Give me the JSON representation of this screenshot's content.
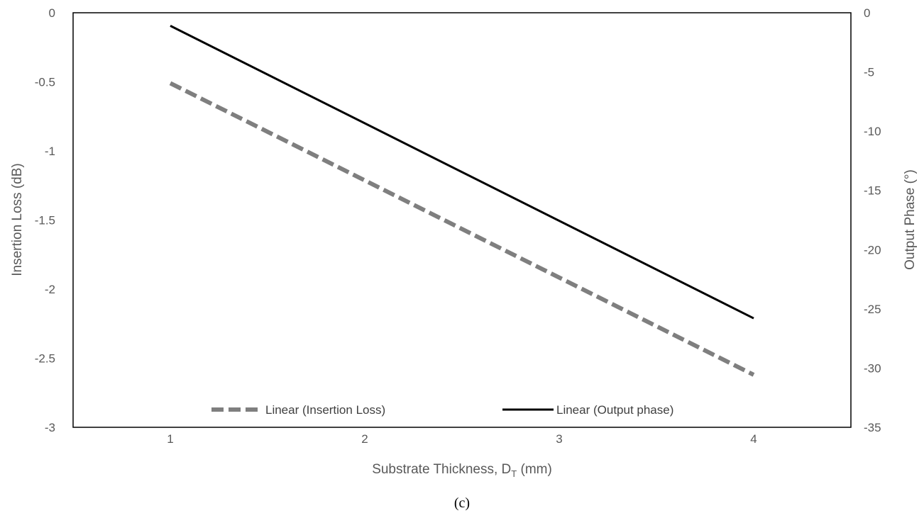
{
  "chart_data": {
    "type": "line",
    "title": "",
    "xlabel": "Substrate Thickness, D",
    "xlabel_subscript": "T",
    "xlabel_suffix": " (mm)",
    "ylabel_left": "Insertion Loss (dB)",
    "ylabel_right": "Output Phase (°)",
    "xlim": [
      0.5,
      4.5
    ],
    "ylim_left": [
      -3,
      0
    ],
    "ylim_right": [
      -35,
      0
    ],
    "x_ticks": [
      "1",
      "2",
      "3",
      "4"
    ],
    "y_left_ticks": [
      "0",
      "-0.5",
      "-1",
      "-1.5",
      "-2",
      "-2.5",
      "-3"
    ],
    "y_right_ticks": [
      "0",
      "-5",
      "-10",
      "-15",
      "-20",
      "-25",
      "-30",
      "-35"
    ],
    "grid": false,
    "legend_position": "bottom-inside",
    "series": [
      {
        "name": "Linear (Insertion Loss)",
        "axis": "left",
        "style": "dashed",
        "color": "#7f7f7f",
        "x": [
          1,
          4
        ],
        "y": [
          -0.51,
          -2.62
        ]
      },
      {
        "name": "Linear (Output phase)",
        "axis": "right",
        "style": "solid",
        "color": "#000000",
        "x": [
          1,
          4
        ],
        "y": [
          -1.1,
          -25.8
        ]
      }
    ]
  },
  "caption": "(c)"
}
